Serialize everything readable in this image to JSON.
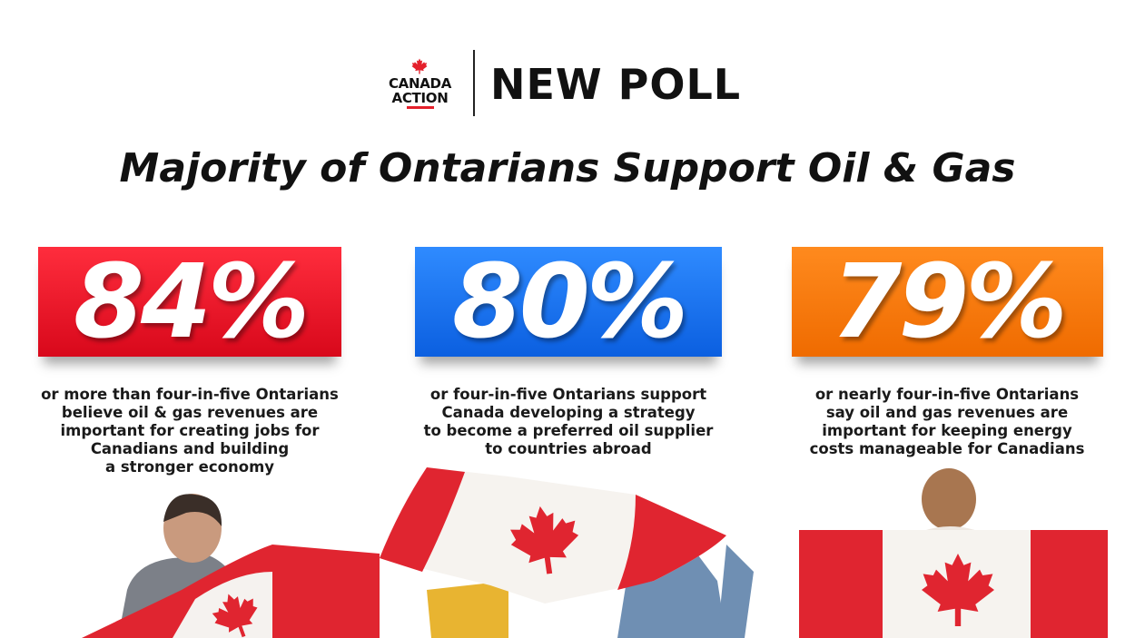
{
  "logo": {
    "lines": [
      "CANADA",
      "ACTION"
    ]
  },
  "header": "NEW POLL",
  "title": "Majority of Ontarians Support Oil & Gas",
  "stats": [
    {
      "value": "84%",
      "description": [
        "or more than four-in-five Ontarians",
        "believe oil & gas revenues are",
        "important for creating jobs for",
        "Canadians and building",
        "a stronger economy"
      ]
    },
    {
      "value": "80%",
      "description": [
        "or four-in-five Ontarians support",
        "Canada developing a strategy",
        "to become a preferred oil supplier",
        "to countries abroad"
      ]
    },
    {
      "value": "79%",
      "description": [
        "or nearly four-in-five Ontarians",
        "say oil and gas revenues are",
        "important for keeping energy",
        "costs manageable for Canadians"
      ]
    }
  ]
}
